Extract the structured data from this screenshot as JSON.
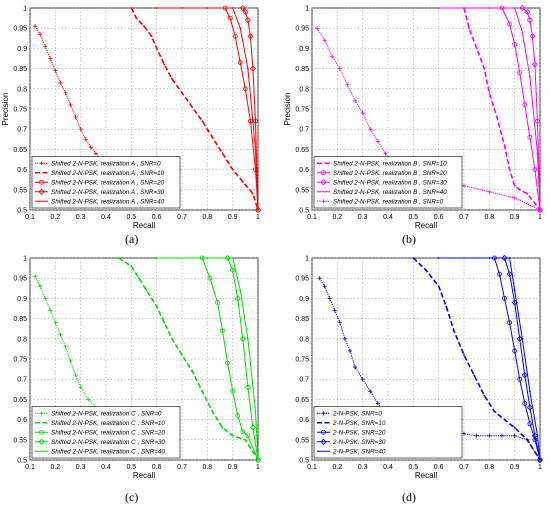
{
  "panels": [
    {
      "caption": "(a)"
    },
    {
      "caption": "(b)"
    },
    {
      "caption": "(c)"
    },
    {
      "caption": "(d)"
    }
  ],
  "chart_data": [
    {
      "type": "line",
      "xlabel": "Recall",
      "ylabel": "Precision",
      "xlim": [
        0.1,
        1
      ],
      "ylim": [
        0.5,
        1
      ],
      "xticks": [
        "0.1",
        "0.2",
        "0.3",
        "0.4",
        "0.5",
        "0.6",
        "0.7",
        "0.8",
        "0.9",
        "1"
      ],
      "yticks": [
        "0.5",
        "0.55",
        "0.6",
        "0.65",
        "0.7",
        "0.75",
        "0.8",
        "0.85",
        "0.9",
        "0.95",
        "1"
      ],
      "grid": true,
      "legend_position": "bottom-left",
      "color": "#ff0000",
      "series": [
        {
          "name": "Shifted 2-N-PSK, realization A , SNR=0",
          "style": "noisy",
          "x": [
            0.12,
            0.14,
            0.16,
            0.18,
            0.2,
            0.22,
            0.24,
            0.26,
            0.28,
            0.3,
            0.32,
            0.34,
            0.36,
            0.38,
            0.4
          ],
          "y": [
            0.955,
            0.935,
            0.905,
            0.875,
            0.845,
            0.815,
            0.79,
            0.76,
            0.73,
            0.7,
            0.675,
            0.655,
            0.64,
            0.625,
            0.615
          ]
        },
        {
          "name": "Shifted 2-N-PSK, realization A , SNR=10",
          "style": "dashed",
          "x": [
            0.5,
            0.52,
            0.55,
            0.58,
            0.6,
            0.63,
            0.66,
            0.7,
            0.74,
            0.78,
            0.82,
            0.86,
            0.9,
            0.94,
            0.98,
            1.0
          ],
          "y": [
            1.0,
            0.975,
            0.955,
            0.93,
            0.9,
            0.86,
            0.825,
            0.79,
            0.755,
            0.72,
            0.68,
            0.64,
            0.6,
            0.57,
            0.54,
            0.5
          ]
        },
        {
          "name": "Shifted 2-N-PSK, realization A , SNR=20",
          "style": "circles",
          "x": [
            0.87,
            0.89,
            0.91,
            0.93,
            0.95,
            0.97,
            0.99,
            1.0
          ],
          "y": [
            1.0,
            0.975,
            0.93,
            0.865,
            0.8,
            0.72,
            0.6,
            0.5
          ]
        },
        {
          "name": "Shifted 2-N-PSK, realization A , SNR=30",
          "style": "diamonds",
          "x": [
            0.94,
            0.95,
            0.96,
            0.97,
            0.98,
            0.99,
            1.0
          ],
          "y": [
            1.0,
            0.99,
            0.97,
            0.93,
            0.85,
            0.72,
            0.5
          ]
        },
        {
          "name": "Shifted 2-N-PSK, realization A , SNR=40",
          "style": "solid",
          "x": [
            0.6,
            0.7,
            0.8,
            0.9,
            0.93,
            0.96,
            0.99,
            1.0
          ],
          "y": [
            1.0,
            1.0,
            1.0,
            1.0,
            0.95,
            0.85,
            0.65,
            0.5
          ]
        }
      ]
    },
    {
      "type": "line",
      "xlabel": "Recall",
      "ylabel": "Precision",
      "xlim": [
        0.1,
        1
      ],
      "ylim": [
        0.5,
        1
      ],
      "xticks": [
        "0.1",
        "0.2",
        "0.3",
        "0.4",
        "0.5",
        "0.6",
        "0.7",
        "0.8",
        "0.9",
        "1"
      ],
      "yticks": [
        "0.5",
        "0.55",
        "0.6",
        "0.65",
        "0.7",
        "0.75",
        "0.8",
        "0.85",
        "0.9",
        "0.95",
        "1"
      ],
      "grid": true,
      "legend_position": "bottom-left",
      "color": "#ff00ff",
      "series": [
        {
          "name": "Shifted 2-N-PSK, realization B , SNR=10",
          "style": "dashed",
          "x": [
            0.7,
            0.72,
            0.75,
            0.78,
            0.8,
            0.83,
            0.86,
            0.88,
            0.9,
            0.92,
            0.95,
            1.0
          ],
          "y": [
            1.0,
            0.95,
            0.9,
            0.85,
            0.79,
            0.73,
            0.66,
            0.6,
            0.56,
            0.55,
            0.54,
            0.5
          ]
        },
        {
          "name": "Shifted 2-N-PSK, realization B , SNR=20",
          "style": "circles",
          "x": [
            0.85,
            0.88,
            0.9,
            0.92,
            0.94,
            0.96,
            0.98,
            1.0
          ],
          "y": [
            1.0,
            0.96,
            0.91,
            0.84,
            0.76,
            0.68,
            0.6,
            0.5
          ]
        },
        {
          "name": "Shifted 2-N-PSK, realization B , SNR=30",
          "style": "diamonds",
          "x": [
            0.93,
            0.95,
            0.96,
            0.97,
            0.98,
            0.99,
            1.0
          ],
          "y": [
            1.0,
            0.99,
            0.97,
            0.93,
            0.86,
            0.72,
            0.5
          ]
        },
        {
          "name": "Shifted 2-N-PSK, realization B , SNR=40",
          "style": "solid",
          "x": [
            0.6,
            0.8,
            0.9,
            0.93,
            0.96,
            0.99,
            1.0
          ],
          "y": [
            1.0,
            1.0,
            1.0,
            0.94,
            0.83,
            0.64,
            0.5
          ]
        },
        {
          "name": "Shifted 2-N-PSK, realization B , SNR=0",
          "style": "noisy",
          "x": [
            0.12,
            0.15,
            0.18,
            0.21,
            0.24,
            0.27,
            0.3,
            0.33,
            0.36,
            0.39,
            0.42,
            0.45,
            0.5,
            0.6,
            0.7,
            0.8,
            0.9,
            1.0
          ],
          "y": [
            0.95,
            0.92,
            0.88,
            0.85,
            0.81,
            0.77,
            0.74,
            0.7,
            0.67,
            0.64,
            0.62,
            0.6,
            0.575,
            0.565,
            0.56,
            0.545,
            0.53,
            0.5
          ]
        }
      ]
    },
    {
      "type": "line",
      "xlabel": "Recall",
      "ylabel": "",
      "xlim": [
        0.1,
        1
      ],
      "ylim": [
        0.5,
        1
      ],
      "xticks": [
        "0.1",
        "0.2",
        "0.3",
        "0.4",
        "0.5",
        "0.6",
        "0.7",
        "0.8",
        "0.9",
        "1"
      ],
      "yticks": [
        "0.5",
        "0.55",
        "0.6",
        "0.65",
        "0.7",
        "0.75",
        "0.8",
        "0.85",
        "0.9",
        "0.95",
        "1"
      ],
      "grid": true,
      "legend_position": "bottom-left",
      "color": "#00dd00",
      "series": [
        {
          "name": "Shifted 2-N-PSK, realization C , SNR=0",
          "style": "noisy",
          "x": [
            0.12,
            0.14,
            0.16,
            0.18,
            0.2,
            0.22,
            0.24,
            0.26,
            0.28,
            0.3,
            0.33,
            0.36,
            0.4
          ],
          "y": [
            0.955,
            0.93,
            0.9,
            0.87,
            0.84,
            0.81,
            0.78,
            0.745,
            0.71,
            0.68,
            0.65,
            0.63,
            0.61
          ]
        },
        {
          "name": "Shifted 2-N-PSK, realization C , SNR=10",
          "style": "dashed",
          "x": [
            0.45,
            0.5,
            0.53,
            0.56,
            0.6,
            0.63,
            0.66,
            0.7,
            0.74,
            0.78,
            0.82,
            0.86,
            0.9,
            0.95,
            1.0
          ],
          "y": [
            1.0,
            0.98,
            0.95,
            0.92,
            0.88,
            0.84,
            0.8,
            0.76,
            0.72,
            0.67,
            0.62,
            0.58,
            0.56,
            0.55,
            0.5
          ]
        },
        {
          "name": "Shifted 2-N-PSK, realization C , SNR=20",
          "style": "circles",
          "x": [
            0.78,
            0.81,
            0.84,
            0.86,
            0.88,
            0.9,
            0.92,
            0.94,
            0.96,
            1.0
          ],
          "y": [
            1.0,
            0.95,
            0.89,
            0.82,
            0.74,
            0.67,
            0.61,
            0.57,
            0.56,
            0.5
          ]
        },
        {
          "name": "Shifted 2-N-PSK, realization C , SNR=30",
          "style": "diamonds",
          "x": [
            0.88,
            0.9,
            0.92,
            0.94,
            0.96,
            0.98,
            1.0
          ],
          "y": [
            1.0,
            0.97,
            0.9,
            0.8,
            0.68,
            0.58,
            0.5
          ]
        },
        {
          "name": "Shifted 2-N-PSK, realization C , SNR=40",
          "style": "solid",
          "x": [
            0.6,
            0.8,
            0.9,
            0.93,
            0.96,
            0.99,
            1.0
          ],
          "y": [
            1.0,
            1.0,
            1.0,
            0.92,
            0.8,
            0.62,
            0.5
          ]
        }
      ]
    },
    {
      "type": "line",
      "xlabel": "Recall",
      "ylabel": "",
      "xlim": [
        0.1,
        1
      ],
      "ylim": [
        0.5,
        1
      ],
      "xticks": [
        "0.1",
        "0.2",
        "0.3",
        "0.4",
        "0.5",
        "0.6",
        "0.7",
        "0.8",
        "0.9",
        "1"
      ],
      "yticks": [
        "0.5",
        "0.55",
        "0.6",
        "0.65",
        "0.7",
        "0.75",
        "0.8",
        "0.85",
        "0.9",
        "0.95",
        "1"
      ],
      "grid": true,
      "legend_position": "bottom-left",
      "color": "#0000ff",
      "series": [
        {
          "name": "2-N-PSK, SNR=0",
          "style": "noisy",
          "x": [
            0.13,
            0.15,
            0.17,
            0.19,
            0.21,
            0.23,
            0.25,
            0.27,
            0.3,
            0.33,
            0.36,
            0.4,
            0.45,
            0.5,
            0.55,
            0.6,
            0.65,
            0.7,
            0.75,
            0.8,
            0.85,
            0.9,
            0.95,
            1.0
          ],
          "y": [
            0.95,
            0.93,
            0.9,
            0.87,
            0.84,
            0.8,
            0.77,
            0.73,
            0.7,
            0.67,
            0.64,
            0.61,
            0.585,
            0.57,
            0.565,
            0.57,
            0.575,
            0.565,
            0.56,
            0.56,
            0.56,
            0.56,
            0.55,
            0.5
          ]
        },
        {
          "name": "2-N-PSK, SNR=10",
          "style": "dashed",
          "x": [
            0.5,
            0.55,
            0.6,
            0.63,
            0.66,
            0.7,
            0.74,
            0.78,
            0.82,
            0.86,
            0.9,
            0.95,
            1.0
          ],
          "y": [
            1.0,
            0.97,
            0.93,
            0.88,
            0.82,
            0.76,
            0.71,
            0.66,
            0.62,
            0.6,
            0.58,
            0.55,
            0.5
          ]
        },
        {
          "name": "2-N-PSK, SNR=20",
          "style": "circles",
          "x": [
            0.82,
            0.84,
            0.86,
            0.88,
            0.9,
            0.92,
            0.94,
            0.96,
            0.98,
            1.0
          ],
          "y": [
            1.0,
            0.96,
            0.9,
            0.84,
            0.77,
            0.7,
            0.64,
            0.59,
            0.55,
            0.5
          ]
        },
        {
          "name": "2-N-PSK, SNR=30",
          "style": "diamonds",
          "x": [
            0.86,
            0.88,
            0.9,
            0.92,
            0.94,
            0.96,
            0.98,
            1.0
          ],
          "y": [
            1.0,
            0.96,
            0.89,
            0.8,
            0.71,
            0.63,
            0.56,
            0.5
          ]
        },
        {
          "name": "2-N-PSK, SNR=40",
          "style": "solid",
          "x": [
            0.6,
            0.8,
            0.88,
            0.9,
            0.93,
            0.96,
            0.99,
            1.0
          ],
          "y": [
            1.0,
            1.0,
            1.0,
            0.92,
            0.8,
            0.67,
            0.56,
            0.5
          ]
        }
      ]
    }
  ]
}
